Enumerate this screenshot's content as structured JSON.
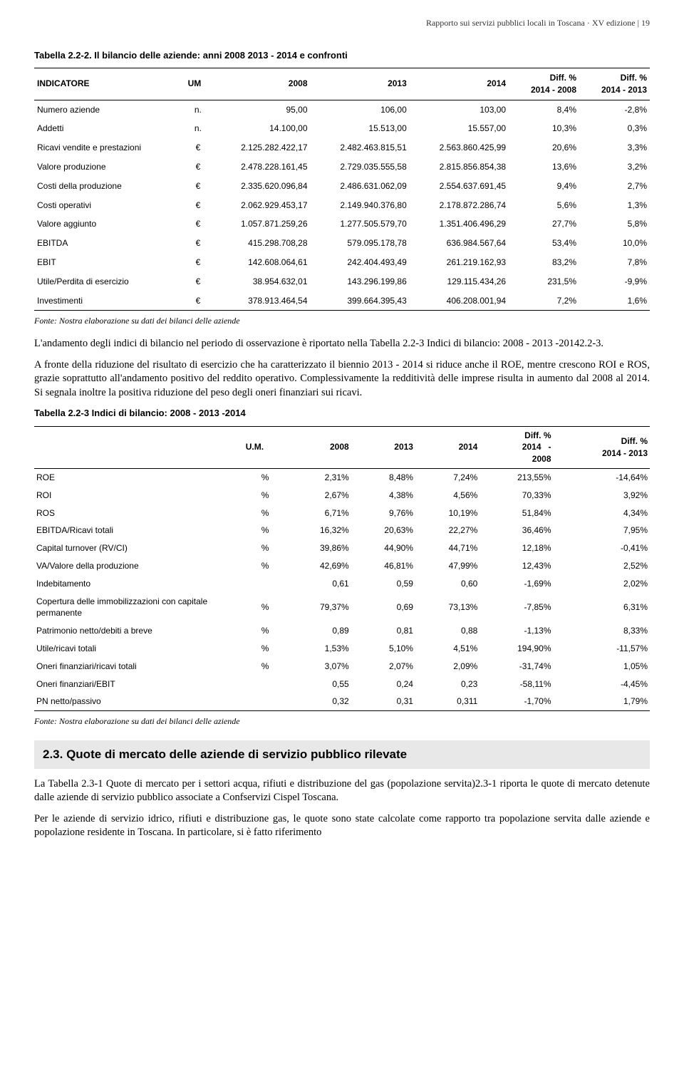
{
  "header": "Rapporto sui servizi pubblici locali in Toscana · XV edizione | 19",
  "table1": {
    "title": "Tabella 2.2-2. Il bilancio delle aziende: anni 2008 2013 - 2014 e confronti",
    "cols": [
      "INDICATORE",
      "UM",
      "2008",
      "2013",
      "2014",
      "Diff. %\n2014 - 2008",
      "Diff. %\n2014 - 2013"
    ],
    "rows": [
      [
        "Numero aziende",
        "n.",
        "95,00",
        "106,00",
        "103,00",
        "8,4%",
        "-2,8%"
      ],
      [
        "Addetti",
        "n.",
        "14.100,00",
        "15.513,00",
        "15.557,00",
        "10,3%",
        "0,3%"
      ],
      [
        "Ricavi vendite e prestazioni",
        "€",
        "2.125.282.422,17",
        "2.482.463.815,51",
        "2.563.860.425,99",
        "20,6%",
        "3,3%"
      ],
      [
        "Valore produzione",
        "€",
        "2.478.228.161,45",
        "2.729.035.555,58",
        "2.815.856.854,38",
        "13,6%",
        "3,2%"
      ],
      [
        "Costi della produzione",
        "€",
        "2.335.620.096,84",
        "2.486.631.062,09",
        "2.554.637.691,45",
        "9,4%",
        "2,7%"
      ],
      [
        "Costi operativi",
        "€",
        "2.062.929.453,17",
        "2.149.940.376,80",
        "2.178.872.286,74",
        "5,6%",
        "1,3%"
      ],
      [
        "Valore aggiunto",
        "€",
        "1.057.871.259,26",
        "1.277.505.579,70",
        "1.351.406.496,29",
        "27,7%",
        "5,8%"
      ],
      [
        "EBITDA",
        "€",
        "415.298.708,28",
        "579.095.178,78",
        "636.984.567,64",
        "53,4%",
        "10,0%"
      ],
      [
        "EBIT",
        "€",
        "142.608.064,61",
        "242.404.493,49",
        "261.219.162,93",
        "83,2%",
        "7,8%"
      ],
      [
        "Utile/Perdita di esercizio",
        "€",
        "38.954.632,01",
        "143.296.199,86",
        "129.115.434,26",
        "231,5%",
        "-9,9%"
      ],
      [
        "Investimenti",
        "€",
        "378.913.464,54",
        "399.664.395,43",
        "406.208.001,94",
        "7,2%",
        "1,6%"
      ]
    ],
    "fonte": "Fonte: Nostra elaborazione su dati dei bilanci delle aziende"
  },
  "para1": "L'andamento degli indici di bilancio nel periodo di osservazione è riportato nella Tabella 2.2-3 Indici di bilancio: 2008 - 2013 -20142.2-3.",
  "para2": "A fronte della riduzione del risultato di esercizio che ha caratterizzato il biennio 2013 - 2014 si riduce anche il ROE, mentre crescono ROI e ROS, grazie soprattutto all'andamento positivo del reddito operativo. Complessivamente la redditività delle imprese risulta in aumento dal 2008 al 2014. Si segnala inoltre la positiva riduzione del peso degli oneri finanziari sui ricavi.",
  "table2": {
    "title": "Tabella 2.2-3 Indici di bilancio: 2008 - 2013 -2014",
    "cols": [
      "",
      "U.M.",
      "2008",
      "2013",
      "2014",
      "Diff. %\n2014   -\n2008",
      "Diff. %\n2014 - 2013"
    ],
    "rows": [
      [
        "ROE",
        "%",
        "2,31%",
        "8,48%",
        "7,24%",
        "213,55%",
        "-14,64%"
      ],
      [
        "ROI",
        "%",
        "2,67%",
        "4,38%",
        "4,56%",
        "70,33%",
        "3,92%"
      ],
      [
        "ROS",
        "%",
        "6,71%",
        "9,76%",
        "10,19%",
        "51,84%",
        "4,34%"
      ],
      [
        "EBITDA/Ricavi totali",
        "%",
        "16,32%",
        "20,63%",
        "22,27%",
        "36,46%",
        "7,95%"
      ],
      [
        "Capital turnover (RV/CI)",
        "%",
        "39,86%",
        "44,90%",
        "44,71%",
        "12,18%",
        "-0,41%"
      ],
      [
        "VA/Valore della produzione",
        "%",
        "42,69%",
        "46,81%",
        "47,99%",
        "12,43%",
        "2,52%"
      ],
      [
        "Indebitamento",
        "",
        "0,61",
        "0,59",
        "0,60",
        "-1,69%",
        "2,02%"
      ],
      [
        "Copertura delle immobilizzazioni con capitale permanente",
        "%",
        "79,37%",
        "0,69",
        "73,13%",
        "-7,85%",
        "6,31%"
      ],
      [
        "Patrimonio netto/debiti a breve",
        "%",
        "0,89",
        "0,81",
        "0,88",
        "-1,13%",
        "8,33%"
      ],
      [
        "Utile/ricavi totali",
        "%",
        "1,53%",
        "5,10%",
        "4,51%",
        "194,90%",
        "-11,57%"
      ],
      [
        "Oneri finanziari/ricavi totali",
        "%",
        "3,07%",
        "2,07%",
        "2,09%",
        "-31,74%",
        "1,05%"
      ],
      [
        "Oneri finanziari/EBIT",
        "",
        "0,55",
        "0,24",
        "0,23",
        "-58,11%",
        "-4,45%"
      ],
      [
        "PN netto/passivo",
        "",
        "0,32",
        "0,31",
        "0,311",
        "-1,70%",
        "1,79%"
      ]
    ],
    "fonte": "Fonte: Nostra elaborazione su dati dei bilanci delle aziende"
  },
  "section": "2.3. Quote di mercato delle aziende di servizio pubblico rilevate",
  "para3": "La Tabella 2.3-1 Quote di mercato per i settori acqua, rifiuti e distribuzione del gas (popolazione servita)2.3-1 riporta le quote di mercato detenute dalle aziende di servizio pubblico associate a Confservizi Cispel Toscana.",
  "para4": "Per le aziende di servizio idrico, rifiuti e distribuzione gas, le quote sono state calcolate come rapporto tra popolazione servita dalle aziende e popolazione residente in Toscana. In particolare, si è fatto riferimento"
}
